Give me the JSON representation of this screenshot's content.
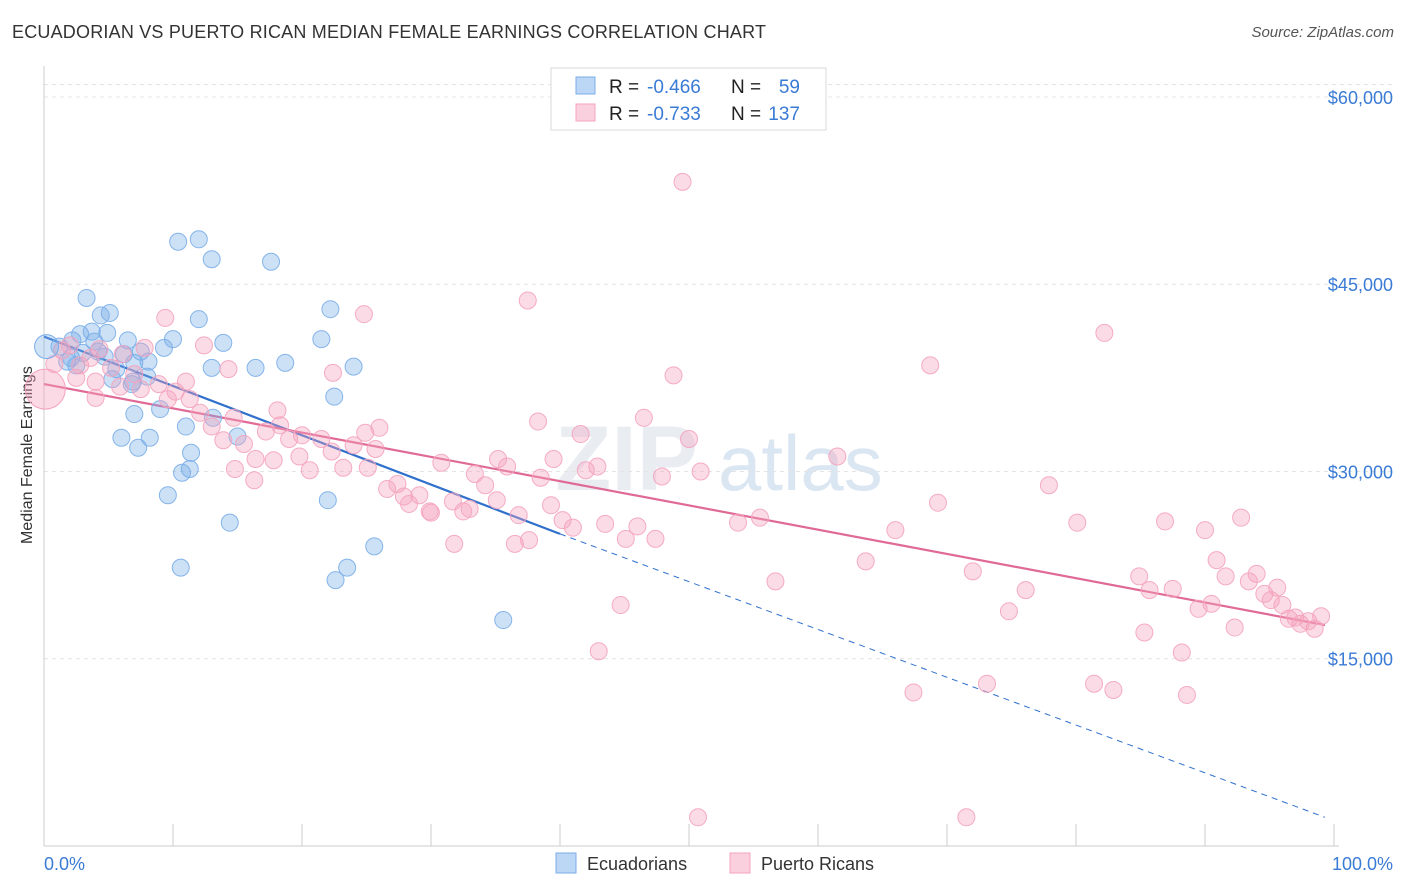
{
  "header": {
    "title": "ECUADORIAN VS PUERTO RICAN MEDIAN FEMALE EARNINGS CORRELATION CHART",
    "source": "Source: ZipAtlas.com"
  },
  "watermark": {
    "zip": "ZIP",
    "atlas": "atlas"
  },
  "stats_legend": [
    {
      "r_label": "R = ",
      "r_value": "-0.466",
      "n_label": "N = ",
      "n_value": "59",
      "color": "#7aaee8"
    },
    {
      "r_label": "R = ",
      "r_value": "-0.733",
      "n_label": "N = ",
      "n_value": "137",
      "color": "#f4a3bd"
    }
  ],
  "chart_data": {
    "type": "scatter",
    "title": "ECUADORIAN VS PUERTO RICAN MEDIAN FEMALE EARNINGS CORRELATION CHART",
    "xlabel": "",
    "ylabel": "Median Female Earnings",
    "xlim": [
      0,
      100
    ],
    "ylim": [
      0,
      62000
    ],
    "x_tick_labels": [
      "0.0%",
      "100.0%"
    ],
    "y_ticks": [
      15000,
      30000,
      45000,
      60000
    ],
    "y_tick_labels": [
      "$15,000",
      "$30,000",
      "$45,000",
      "$60,000"
    ],
    "grid": true,
    "legend_position": "bottom-center",
    "series": [
      {
        "name": "Ecuadorians",
        "color": "#7aaee8",
        "line_color": "#3070cc",
        "trend": {
          "x0": 0,
          "y0": 40800,
          "x1": 40,
          "y1": 25000,
          "dash_to_x": 99.3,
          "dash_to_y": 2300
        },
        "points": [
          [
            1.2,
            40.0
          ],
          [
            2.2,
            40.5
          ],
          [
            3.0,
            39.5
          ],
          [
            1.8,
            38.8
          ],
          [
            2.8,
            41.0
          ],
          [
            4.4,
            42.5
          ],
          [
            3.7,
            41.2
          ],
          [
            2.1,
            39.1
          ],
          [
            2.5,
            38.5
          ],
          [
            4.2,
            39.6
          ],
          [
            5.3,
            37.4
          ],
          [
            4.9,
            41.1
          ],
          [
            6.2,
            39.4
          ],
          [
            7.5,
            39.6
          ],
          [
            6.5,
            40.5
          ],
          [
            7.0,
            38.7
          ],
          [
            3.9,
            40.4
          ],
          [
            4.7,
            39.2
          ],
          [
            8.1,
            38.8
          ],
          [
            9.3,
            39.9
          ],
          [
            8.0,
            37.6
          ],
          [
            6.8,
            37.0
          ],
          [
            5.1,
            42.7
          ],
          [
            10.0,
            40.6
          ],
          [
            9.0,
            35.0
          ],
          [
            11.0,
            33.6
          ],
          [
            12.0,
            42.2
          ],
          [
            13.9,
            40.3
          ],
          [
            13.0,
            38.3
          ],
          [
            16.4,
            38.3
          ],
          [
            18.7,
            38.7
          ],
          [
            22.2,
            43.0
          ],
          [
            21.5,
            40.6
          ],
          [
            22.5,
            36.0
          ],
          [
            24.0,
            38.4
          ],
          [
            22.0,
            27.7
          ],
          [
            10.4,
            48.4
          ],
          [
            12.0,
            48.6
          ],
          [
            13.0,
            47.0
          ],
          [
            17.6,
            46.8
          ],
          [
            3.3,
            43.9
          ],
          [
            7.0,
            34.6
          ],
          [
            6.0,
            32.7
          ],
          [
            7.3,
            31.9
          ],
          [
            8.2,
            32.7
          ],
          [
            11.3,
            30.2
          ],
          [
            10.7,
            29.9
          ],
          [
            9.6,
            28.1
          ],
          [
            14.4,
            25.9
          ],
          [
            11.4,
            31.5
          ],
          [
            13.1,
            34.3
          ],
          [
            15.0,
            32.8
          ],
          [
            10.6,
            22.3
          ],
          [
            23.5,
            22.3
          ],
          [
            25.6,
            24.0
          ],
          [
            22.6,
            21.3
          ],
          [
            35.6,
            18.1
          ],
          [
            6.9,
            37.2
          ],
          [
            5.6,
            38.2
          ]
        ]
      },
      {
        "name": "Puerto Ricans",
        "color": "#f4a3bd",
        "line_color": "#e06a96",
        "trend": {
          "x0": 0,
          "y0": 37000,
          "x1": 99.3,
          "y1": 17700
        },
        "points": [
          [
            0.8,
            38.6
          ],
          [
            1.4,
            39.7
          ],
          [
            2.0,
            40.1
          ],
          [
            2.8,
            38.5
          ],
          [
            3.6,
            39.1
          ],
          [
            4.3,
            39.8
          ],
          [
            5.2,
            38.3
          ],
          [
            6.1,
            39.4
          ],
          [
            7.0,
            37.8
          ],
          [
            7.8,
            39.9
          ],
          [
            2.5,
            37.5
          ],
          [
            4.0,
            37.2
          ],
          [
            5.9,
            36.8
          ],
          [
            7.5,
            36.6
          ],
          [
            8.9,
            37.0
          ],
          [
            9.6,
            35.8
          ],
          [
            10.2,
            36.4
          ],
          [
            11.3,
            35.8
          ],
          [
            12.1,
            34.7
          ],
          [
            13.0,
            33.6
          ],
          [
            13.9,
            32.5
          ],
          [
            14.7,
            34.3
          ],
          [
            15.5,
            32.2
          ],
          [
            16.4,
            31.0
          ],
          [
            17.2,
            33.2
          ],
          [
            18.1,
            34.9
          ],
          [
            19.0,
            32.6
          ],
          [
            19.8,
            31.2
          ],
          [
            20.6,
            30.1
          ],
          [
            21.5,
            32.6
          ],
          [
            22.3,
            31.6
          ],
          [
            23.2,
            30.3
          ],
          [
            24.0,
            32.1
          ],
          [
            24.9,
            33.1
          ],
          [
            25.7,
            31.8
          ],
          [
            26.6,
            28.6
          ],
          [
            27.4,
            29.0
          ],
          [
            28.3,
            27.4
          ],
          [
            29.1,
            28.1
          ],
          [
            30.0,
            26.7
          ],
          [
            30.8,
            30.7
          ],
          [
            31.7,
            27.6
          ],
          [
            32.5,
            26.8
          ],
          [
            33.4,
            29.8
          ],
          [
            34.2,
            28.9
          ],
          [
            35.1,
            27.7
          ],
          [
            35.9,
            30.4
          ],
          [
            36.8,
            26.5
          ],
          [
            37.6,
            24.5
          ],
          [
            38.5,
            29.5
          ],
          [
            39.3,
            27.3
          ],
          [
            40.2,
            26.1
          ],
          [
            41.0,
            25.5
          ],
          [
            42.0,
            30.1
          ],
          [
            43.5,
            25.8
          ],
          [
            45.1,
            24.6
          ],
          [
            46.0,
            25.6
          ],
          [
            47.4,
            24.6
          ],
          [
            9.4,
            42.3
          ],
          [
            12.4,
            40.1
          ],
          [
            14.3,
            38.2
          ],
          [
            24.8,
            42.6
          ],
          [
            37.5,
            43.7
          ],
          [
            46.5,
            34.3
          ],
          [
            47.9,
            29.6
          ],
          [
            48.8,
            37.7
          ],
          [
            50.9,
            30.0
          ],
          [
            50.0,
            32.6
          ],
          [
            49.5,
            53.2
          ],
          [
            38.3,
            34.0
          ],
          [
            39.5,
            31.0
          ],
          [
            41.6,
            33.0
          ],
          [
            42.9,
            30.4
          ],
          [
            14.8,
            30.2
          ],
          [
            16.3,
            29.3
          ],
          [
            17.8,
            30.9
          ],
          [
            25.1,
            30.3
          ],
          [
            27.9,
            28.0
          ],
          [
            29.9,
            26.8
          ],
          [
            31.8,
            24.2
          ],
          [
            36.5,
            24.2
          ],
          [
            44.7,
            19.3
          ],
          [
            43.0,
            15.6
          ],
          [
            55.5,
            26.3
          ],
          [
            56.7,
            21.2
          ],
          [
            61.5,
            31.2
          ],
          [
            63.7,
            22.8
          ],
          [
            66.0,
            25.3
          ],
          [
            67.4,
            12.3
          ],
          [
            68.7,
            38.5
          ],
          [
            69.3,
            27.5
          ],
          [
            72.0,
            22.0
          ],
          [
            73.1,
            13.0
          ],
          [
            74.8,
            18.8
          ],
          [
            76.1,
            20.5
          ],
          [
            77.9,
            28.9
          ],
          [
            80.1,
            25.9
          ],
          [
            81.4,
            13.0
          ],
          [
            82.2,
            41.1
          ],
          [
            82.9,
            12.5
          ],
          [
            84.9,
            21.6
          ],
          [
            85.3,
            17.1
          ],
          [
            85.7,
            20.5
          ],
          [
            86.9,
            26.0
          ],
          [
            87.5,
            20.6
          ],
          [
            88.2,
            15.5
          ],
          [
            88.6,
            12.1
          ],
          [
            89.5,
            19.0
          ],
          [
            90.0,
            25.3
          ],
          [
            90.5,
            19.4
          ],
          [
            90.9,
            22.9
          ],
          [
            91.6,
            21.6
          ],
          [
            92.3,
            17.5
          ],
          [
            92.8,
            26.3
          ],
          [
            93.4,
            21.2
          ],
          [
            94.0,
            21.8
          ],
          [
            94.6,
            20.2
          ],
          [
            95.1,
            19.7
          ],
          [
            95.6,
            20.7
          ],
          [
            96.0,
            19.3
          ],
          [
            96.5,
            18.2
          ],
          [
            97.0,
            18.3
          ],
          [
            97.4,
            17.8
          ],
          [
            98.0,
            18.0
          ],
          [
            98.5,
            17.4
          ],
          [
            99.0,
            18.4
          ],
          [
            22.4,
            37.9
          ],
          [
            53.8,
            25.9
          ],
          [
            50.7,
            2.3
          ],
          [
            71.5,
            2.3
          ],
          [
            4.0,
            35.9
          ],
          [
            11.0,
            37.2
          ],
          [
            18.3,
            33.7
          ],
          [
            20.0,
            32.9
          ],
          [
            26.0,
            33.5
          ],
          [
            33.0,
            27.0
          ],
          [
            35.2,
            31.0
          ]
        ]
      }
    ]
  },
  "legend": {
    "items": [
      {
        "label": "Ecuadorians",
        "color": "#7aaee8"
      },
      {
        "label": "Puerto Ricans",
        "color": "#f4a3bd"
      }
    ]
  }
}
